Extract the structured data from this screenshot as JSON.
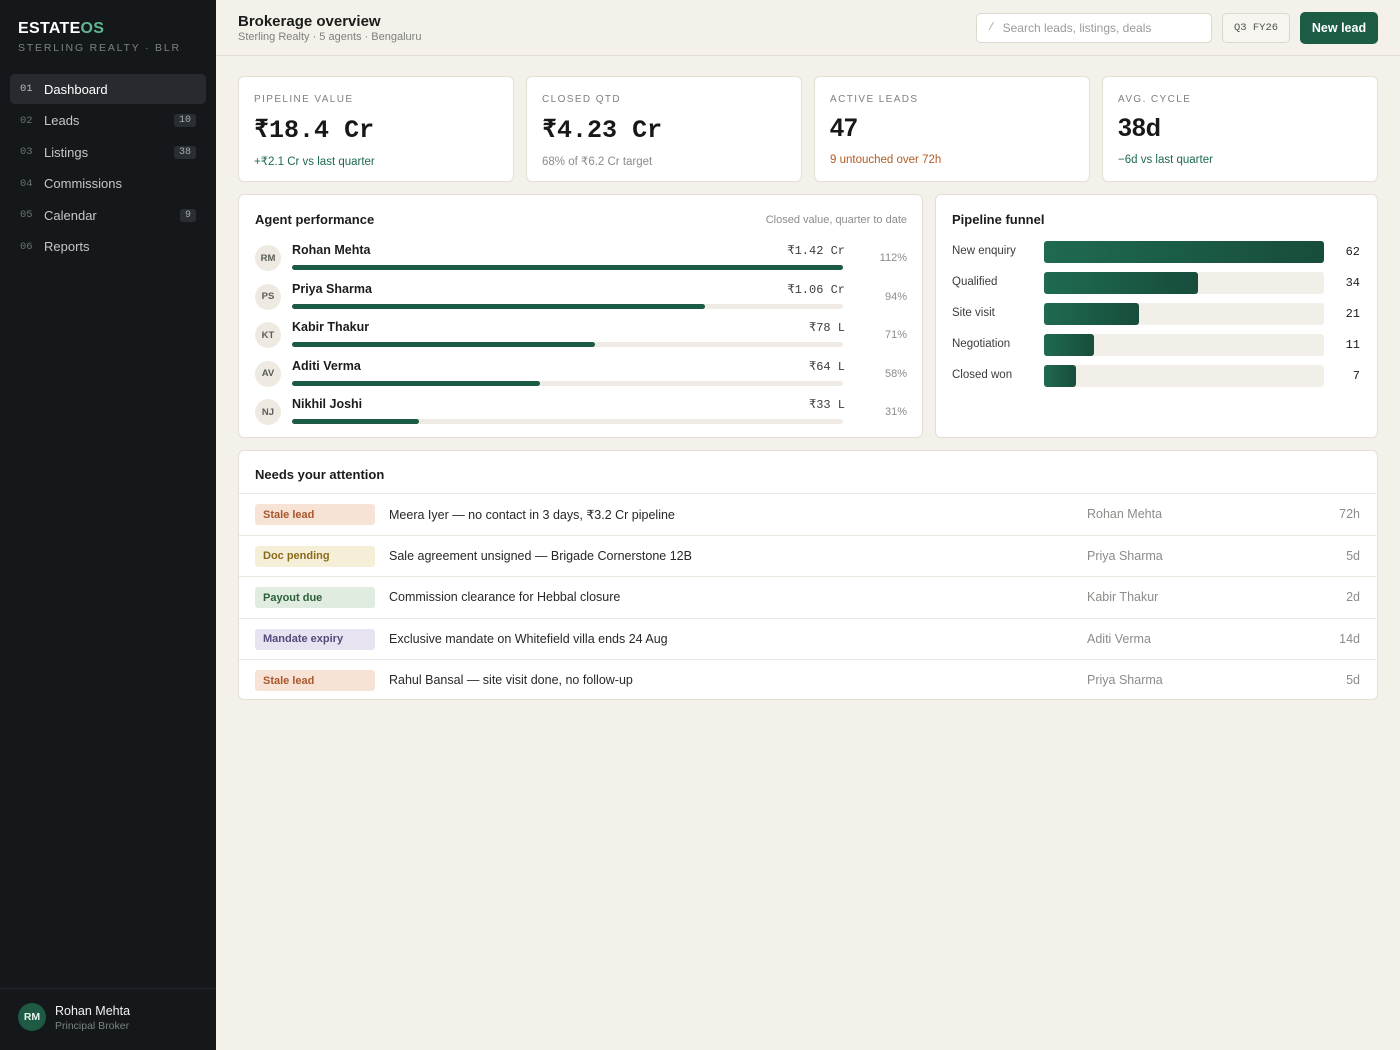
{
  "sidebar": {
    "brand_main": "ESTATE",
    "brand_accent": "OS",
    "brand_sub": "STERLING REALTY · BLR",
    "items": [
      {
        "num": "01",
        "label": "Dashboard",
        "count": ""
      },
      {
        "num": "02",
        "label": "Leads",
        "count": "10"
      },
      {
        "num": "03",
        "label": "Listings",
        "count": "38"
      },
      {
        "num": "04",
        "label": "Commissions",
        "count": ""
      },
      {
        "num": "05",
        "label": "Calendar",
        "count": "9"
      },
      {
        "num": "06",
        "label": "Reports",
        "count": ""
      }
    ],
    "user": {
      "initials": "RM",
      "name": "Rohan Mehta",
      "role": "Principal Broker"
    }
  },
  "header": {
    "title": "Brokerage overview",
    "subtitle": "Sterling Realty · 5 agents · Bengaluru",
    "search_slash": "/",
    "search_placeholder": "Search leads, listings, deals",
    "period": "Q3  FY26",
    "new_lead": "New lead"
  },
  "kpis": [
    {
      "label": "PIPELINE VALUE",
      "value": "₹18.4 Cr",
      "note": "+₹2.1 Cr vs last quarter",
      "tone": "green"
    },
    {
      "label": "CLOSED QTD",
      "value": "₹4.23 Cr",
      "note": "68% of ₹6.2 Cr target",
      "tone": "grey"
    },
    {
      "label": "ACTIVE LEADS",
      "value": "47",
      "note": "9 untouched over 72h",
      "tone": "orange"
    },
    {
      "label": "AVG. CYCLE",
      "value": "38d",
      "note": "−6d vs last quarter",
      "tone": "green"
    }
  ],
  "agents": {
    "title": "Agent performance",
    "hint": "Closed value, quarter to date",
    "rows": [
      {
        "initials": "RM",
        "name": "Rohan Mehta",
        "value": "₹1.42 Cr",
        "pct": "112%",
        "fill": 1.0
      },
      {
        "initials": "PS",
        "name": "Priya Sharma",
        "value": "₹1.06 Cr",
        "pct": "94%",
        "fill": 0.75
      },
      {
        "initials": "KT",
        "name": "Kabir Thakur",
        "value": "₹78 L",
        "pct": "71%",
        "fill": 0.55
      },
      {
        "initials": "AV",
        "name": "Aditi Verma",
        "value": "₹64 L",
        "pct": "58%",
        "fill": 0.45
      },
      {
        "initials": "NJ",
        "name": "Nikhil Joshi",
        "value": "₹33 L",
        "pct": "31%",
        "fill": 0.23
      }
    ]
  },
  "funnel": {
    "title": "Pipeline funnel",
    "stages": [
      {
        "label": "New enquiry",
        "count": "62",
        "n": 62
      },
      {
        "label": "Qualified",
        "count": "34",
        "n": 34
      },
      {
        "label": "Site visit",
        "count": "21",
        "n": 21
      },
      {
        "label": "Negotiation",
        "count": "11",
        "n": 11
      },
      {
        "label": "Closed won",
        "count": "7",
        "n": 7
      }
    ]
  },
  "attention": {
    "title": "Needs your attention",
    "rows": [
      {
        "tag": "Stale lead",
        "tone": "stale",
        "text": "Meera Iyer — no contact in 3 days, ₹3.2 Cr pipeline",
        "agent": "Rohan Mehta",
        "age": "72h"
      },
      {
        "tag": "Doc pending",
        "tone": "doc",
        "text": "Sale agreement unsigned — Brigade Cornerstone 12B",
        "agent": "Priya Sharma",
        "age": "5d"
      },
      {
        "tag": "Payout due",
        "tone": "payout",
        "text": "Commission clearance for Hebbal closure",
        "agent": "Kabir Thakur",
        "age": "2d"
      },
      {
        "tag": "Mandate expiry",
        "tone": "mandate",
        "text": "Exclusive mandate on Whitefield villa ends 24 Aug",
        "agent": "Aditi Verma",
        "age": "14d"
      },
      {
        "tag": "Stale lead",
        "tone": "stale",
        "text": "Rahul Bansal — site visit done, no follow-up",
        "agent": "Priya Sharma",
        "age": "5d"
      }
    ]
  }
}
